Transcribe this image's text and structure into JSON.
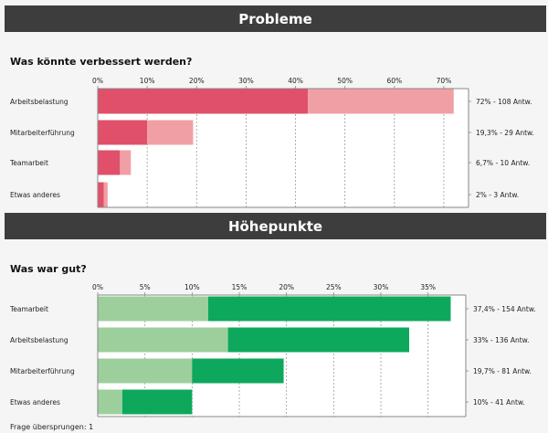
{
  "sections": [
    {
      "title": "Probleme",
      "question": "Was könnte verbessert werden?"
    },
    {
      "title": "Höhepunkte",
      "question": "Was war gut?"
    }
  ],
  "footer": {
    "skipped": "Frage übersprungen: 1"
  },
  "chart_data": [
    {
      "type": "bar",
      "orientation": "horizontal",
      "stacked": true,
      "title": "Was könnte verbessert werden?",
      "xlim": [
        0,
        75
      ],
      "ticks": [
        0,
        10,
        20,
        30,
        40,
        50,
        60,
        70
      ],
      "tick_labels": [
        "0%",
        "10%",
        "20%",
        "30%",
        "40%",
        "50%",
        "60%",
        "70%"
      ],
      "categories": [
        "Arbeitsbelastung",
        "Mitarbeiterführung",
        "Teamarbeit",
        "Etwas anderes"
      ],
      "series": [
        {
          "values": [
            42.5,
            10,
            4.5,
            1.2
          ],
          "color": "#e0506a"
        },
        {
          "values": [
            29.5,
            9.3,
            2.2,
            0.8
          ],
          "color": "#f0a0a5"
        }
      ],
      "value_labels": [
        "72% - 108 Antw.",
        "19,3% - 29 Antw.",
        "6,7% - 10 Antw.",
        "2% - 3 Antw."
      ],
      "grid": "vertical dashed"
    },
    {
      "type": "bar",
      "orientation": "horizontal",
      "stacked": true,
      "title": "Was war gut?",
      "xlim": [
        0,
        39
      ],
      "ticks": [
        0,
        5,
        10,
        15,
        20,
        25,
        30,
        35
      ],
      "tick_labels": [
        "0%",
        "5%",
        "10%",
        "15%",
        "20%",
        "25%",
        "30%",
        "35%"
      ],
      "categories": [
        "Teamarbeit",
        "Arbeitsbelastung",
        "Mitarbeiterführung",
        "Etwas anderes"
      ],
      "series": [
        {
          "values": [
            11.7,
            13.8,
            10,
            2.6
          ],
          "color": "#9ccf9c"
        },
        {
          "values": [
            25.7,
            19.2,
            9.7,
            7.4
          ],
          "color": "#0ea85c"
        }
      ],
      "value_labels": [
        "37,4% - 154 Antw.",
        "33% - 136 Antw.",
        "19,7% - 81 Antw.",
        "10% - 41 Antw."
      ],
      "grid": "vertical dashed"
    }
  ]
}
